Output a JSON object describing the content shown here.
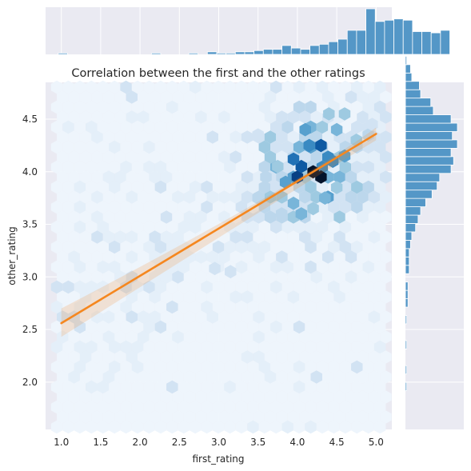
{
  "chart_data": {
    "type": "hexbin",
    "title": "Correlation between the first and the other ratings",
    "xlabel": "first_rating",
    "ylabel": "other_rating",
    "xlim": [
      0.8,
      5.2
    ],
    "ylim": [
      1.55,
      4.85
    ],
    "xticks": [
      1.0,
      1.5,
      2.0,
      2.5,
      3.0,
      3.5,
      4.0,
      4.5,
      5.0
    ],
    "xtick_labels": [
      "1.0",
      "1.5",
      "2.0",
      "2.5",
      "3.0",
      "3.5",
      "4.0",
      "4.5",
      "5.0"
    ],
    "yticks": [
      2.0,
      2.5,
      3.0,
      3.5,
      4.0,
      4.5
    ],
    "ytick_labels": [
      "2.0",
      "2.5",
      "3.0",
      "3.5",
      "4.0",
      "4.5"
    ],
    "grid": true,
    "regression": {
      "color": "#f5871f",
      "x": [
        1.0,
        5.0
      ],
      "y": [
        2.56,
        4.36
      ],
      "ci_at_x1": [
        2.43,
        2.7
      ],
      "ci_at_x5": [
        4.3,
        4.42
      ]
    },
    "marginal_x": {
      "type": "histogram",
      "bin_edges_start": 0.96,
      "bin_width": 0.1185,
      "heights": [
        1,
        0,
        0,
        0,
        0,
        0,
        0,
        0,
        0,
        0,
        1,
        0,
        0,
        0,
        1,
        0,
        2,
        1,
        1,
        2,
        2,
        3,
        4,
        4,
        7,
        5,
        4,
        7,
        8,
        10,
        12,
        19,
        19,
        36,
        26,
        27,
        28,
        27,
        18,
        18,
        17,
        19
      ]
    },
    "marginal_y": {
      "type": "histogram",
      "bin_edges_start": 1.6,
      "bin_width": 0.0795,
      "heights": [
        0,
        0,
        0,
        0,
        1,
        0,
        1,
        0,
        0,
        1,
        0,
        0,
        1,
        0,
        2,
        2,
        2,
        0,
        3,
        3,
        3,
        4,
        5,
        8,
        10,
        12,
        16,
        21,
        25,
        27,
        36,
        38,
        36,
        41,
        37,
        41,
        36,
        22,
        20,
        12,
        11,
        5,
        4,
        1
      ]
    },
    "hexbin": {
      "gridsize": 30,
      "cmap_base": "#1f77b4",
      "dense_cells": [
        {
          "x": 4.0,
          "y": 3.95,
          "c": 10
        },
        {
          "x": 4.05,
          "y": 4.05,
          "c": 9
        },
        {
          "x": 4.2,
          "y": 4.0,
          "c": 12
        },
        {
          "x": 4.3,
          "y": 4.25,
          "c": 9
        },
        {
          "x": 4.3,
          "y": 3.95,
          "c": 12
        },
        {
          "x": 4.15,
          "y": 4.25,
          "c": 7
        },
        {
          "x": 3.95,
          "y": 4.12,
          "c": 8
        },
        {
          "x": 3.85,
          "y": 3.9,
          "c": 6
        },
        {
          "x": 4.45,
          "y": 4.1,
          "c": 7
        },
        {
          "x": 4.5,
          "y": 4.4,
          "c": 5
        },
        {
          "x": 4.6,
          "y": 4.15,
          "c": 6
        },
        {
          "x": 4.1,
          "y": 4.4,
          "c": 6
        },
        {
          "x": 3.95,
          "y": 3.7,
          "c": 5
        },
        {
          "x": 4.35,
          "y": 3.75,
          "c": 5
        },
        {
          "x": 4.75,
          "y": 4.3,
          "c": 4
        },
        {
          "x": 4.6,
          "y": 4.55,
          "c": 4
        },
        {
          "x": 3.75,
          "y": 4.05,
          "c": 4
        },
        {
          "x": 4.05,
          "y": 3.6,
          "c": 5
        },
        {
          "x": 4.2,
          "y": 3.65,
          "c": 4
        },
        {
          "x": 3.8,
          "y": 3.6,
          "c": 3
        },
        {
          "x": 4.9,
          "y": 4.35,
          "c": 3
        },
        {
          "x": 3.6,
          "y": 3.95,
          "c": 3
        },
        {
          "x": 4.5,
          "y": 3.85,
          "c": 4
        },
        {
          "x": 3.5,
          "y": 3.75,
          "c": 3
        },
        {
          "x": 4.4,
          "y": 4.55,
          "c": 4
        },
        {
          "x": 4.95,
          "y": 4.45,
          "c": 2
        },
        {
          "x": 2.95,
          "y": 3.08,
          "c": 2
        },
        {
          "x": 3.15,
          "y": 3.05,
          "c": 2
        },
        {
          "x": 3.5,
          "y": 4.35,
          "c": 2
        }
      ]
    }
  }
}
